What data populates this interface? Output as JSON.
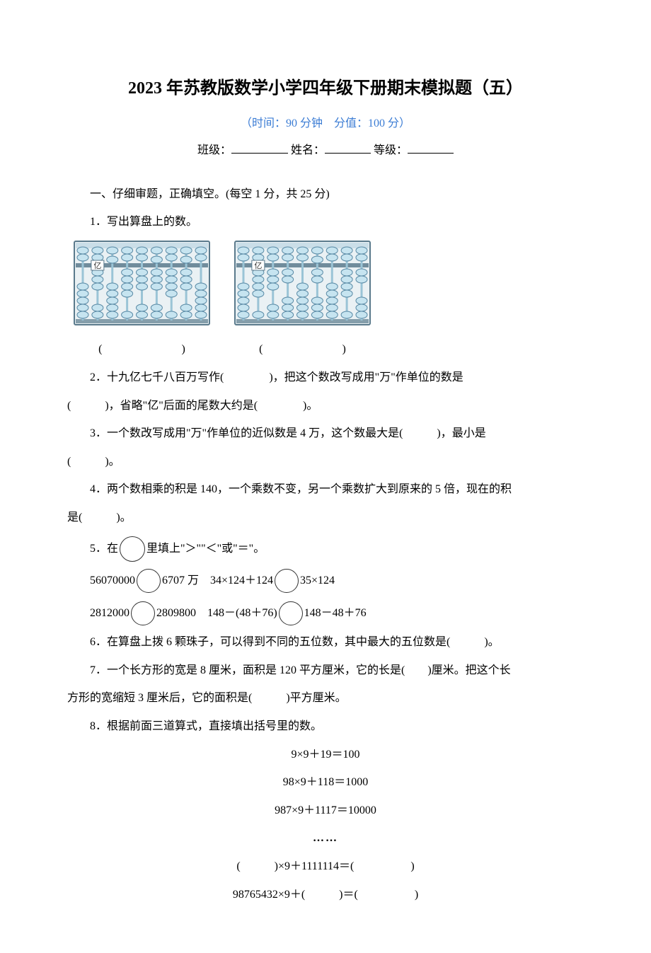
{
  "title": "2023 年苏教版数学小学四年级下册期末模拟题（五）",
  "subtitle": "（时间：90 分钟　分值：100 分）",
  "fill_labels": {
    "class": "班级：",
    "name": "姓名：",
    "grade": "等级："
  },
  "section1_heading": "一、仔细审题，正确填空。(每空 1 分，共 25 分)",
  "q1": "1．写出算盘上的数。",
  "abacus_answer_left": "(　　　　　　　)",
  "abacus_answer_right": "(　　　　　　　)",
  "q2_a": "2．十九亿七千八百万写作(　　　　)，把这个数改写成用\"万\"作单位的数是",
  "q2_b": "(　　　)，省略\"亿\"后面的尾数大约是(　　　　)。",
  "q3_a": "3．一个数改写成用\"万\"作单位的近似数是 4 万，这个数最大是(　　　)，最小是",
  "q3_b": "(　　　)。",
  "q4_a": "4．两个数相乘的积是 140，一个乘数不变，另一个乘数扩大到原来的 5 倍，现在的积",
  "q4_b": "是(　　　)。",
  "q5_intro_a": "5．在",
  "q5_intro_b": "里填上\"＞\"\"＜\"或\"＝\"。",
  "q5_line1_a": "56070000",
  "q5_line1_b": "6707 万　34×124＋124",
  "q5_line1_c": "35×124",
  "q5_line2_a": "2812000",
  "q5_line2_b": "2809800　148－(48＋76)",
  "q5_line2_c": "148－48＋76",
  "q6": "6．在算盘上拨 6 颗珠子，可以得到不同的五位数，其中最大的五位数是(　　　)。",
  "q7_a": "7．一个长方形的宽是 8 厘米，面积是 120 平方厘米，它的长是(　　)厘米。把这个长",
  "q7_b": "方形的宽缩短 3 厘米后，它的面积是(　　　)平方厘米。",
  "q8": "8．根据前面三道算式，直接填出括号里的数。",
  "eq1": "9×9＋19＝100",
  "eq2": "98×9＋118＝1000",
  "eq3": "987×9＋1117＝10000",
  "dots": "……",
  "eq4": "(　　　)×9＋1111114＝(　　　　　)",
  "eq5": "98765432×9＋(　　　)＝(　　　　　)",
  "abacus_style": {
    "frame_color": "#5a7a8c",
    "bead_fill": "#c6e4f0",
    "bead_stroke": "#5a8aa5",
    "rod_color": "#9ac4d6",
    "bg": "#eaf1f4"
  },
  "abacus1": {
    "yi_col": 1,
    "upper": [
      0,
      0,
      1,
      0,
      0,
      1,
      0,
      1,
      0
    ],
    "lower": [
      0,
      3,
      0,
      4,
      3,
      3,
      4,
      3,
      0
    ]
  },
  "abacus2": {
    "yi_col": 1,
    "upper": [
      0,
      0,
      0,
      0,
      0,
      1,
      0,
      0,
      0
    ],
    "lower": [
      0,
      4,
      3,
      2,
      0,
      2,
      0,
      4,
      2
    ]
  }
}
